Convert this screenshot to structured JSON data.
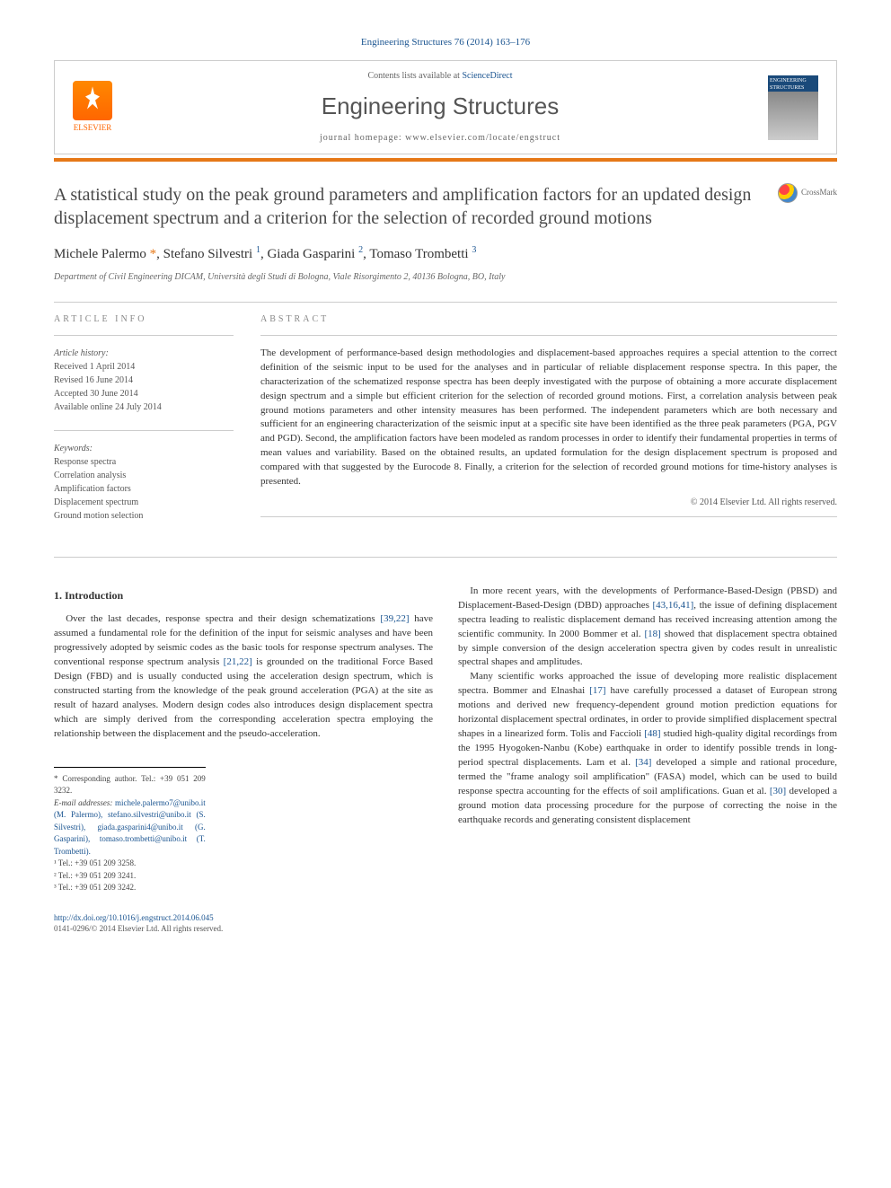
{
  "citation": "Engineering Structures 76 (2014) 163–176",
  "header": {
    "publisher_name": "ELSEVIER",
    "contents_prefix": "Contents lists available at ",
    "contents_link": "ScienceDirect",
    "journal_title": "Engineering Structures",
    "homepage_label": "journal homepage: www.elsevier.com/locate/engstruct",
    "cover_label": "ENGINEERING STRUCTURES"
  },
  "article": {
    "title": "A statistical study on the peak ground parameters and amplification factors for an updated design displacement spectrum and a criterion for the selection of recorded ground motions",
    "crossmark_label": "CrossMark",
    "authors_html": "Michele Palermo <span class='asterisk'>*</span>, Stefano Silvestri <sup>1</sup>, Giada Gasparini <sup>2</sup>, Tomaso Trombetti <sup>3</sup>",
    "affiliation": "Department of Civil Engineering DICAM, Università degli Studi di Bologna, Viale Risorgimento 2, 40136 Bologna, BO, Italy"
  },
  "info": {
    "section_label": "ARTICLE INFO",
    "history_label": "Article history:",
    "history": [
      "Received 1 April 2014",
      "Revised 16 June 2014",
      "Accepted 30 June 2014",
      "Available online 24 July 2014"
    ],
    "keywords_label": "Keywords:",
    "keywords": [
      "Response spectra",
      "Correlation analysis",
      "Amplification factors",
      "Displacement spectrum",
      "Ground motion selection"
    ]
  },
  "abstract": {
    "section_label": "ABSTRACT",
    "text": "The development of performance-based design methodologies and displacement-based approaches requires a special attention to the correct definition of the seismic input to be used for the analyses and in particular of reliable displacement response spectra. In this paper, the characterization of the schematized response spectra has been deeply investigated with the purpose of obtaining a more accurate displacement design spectrum and a simple but efficient criterion for the selection of recorded ground motions. First, a correlation analysis between peak ground motions parameters and other intensity measures has been performed. The independent parameters which are both necessary and sufficient for an engineering characterization of the seismic input at a specific site have been identified as the three peak parameters (PGA, PGV and PGD). Second, the amplification factors have been modeled as random processes in order to identify their fundamental properties in terms of mean values and variability. Based on the obtained results, an updated formulation for the design displacement spectrum is proposed and compared with that suggested by the Eurocode 8. Finally, a criterion for the selection of recorded ground motions for time-history analyses is presented.",
    "copyright": "© 2014 Elsevier Ltd. All rights reserved."
  },
  "body": {
    "heading": "1. Introduction",
    "p1": "Over the last decades, response spectra and their design schematizations [39,22] have assumed a fundamental role for the definition of the input for seismic analyses and have been progressively adopted by seismic codes as the basic tools for response spectrum analyses. The conventional response spectrum analysis [21,22] is grounded on the traditional Force Based Design (FBD) and is usually conducted using the acceleration design spectrum, which is constructed starting from the knowledge of the peak ground acceleration (PGA) at the site as result of hazard analyses. Modern design codes also introduces design displacement spectra which are simply derived from the corresponding acceleration spectra employing the relationship between the displacement and the pseudo-acceleration.",
    "p2": "In more recent years, with the developments of Performance-Based-Design (PBSD) and Displacement-Based-Design (DBD) approaches [43,16,41], the issue of defining displacement spectra leading to realistic displacement demand has received increasing attention among the scientific community. In 2000 Bommer et al. [18] showed that displacement spectra obtained by simple conversion of the design acceleration spectra given by codes result in unrealistic spectral shapes and amplitudes.",
    "p3": "Many scientific works approached the issue of developing more realistic displacement spectra. Bommer and Elnashai [17] have carefully processed a dataset of European strong motions and derived new frequency-dependent ground motion prediction equations for horizontal displacement spectral ordinates, in order to provide simplified displacement spectral shapes in a linearized form. Tolis and Faccioli [48] studied high-quality digital recordings from the 1995 Hyogoken-Nanbu (Kobe) earthquake in order to identify possible trends in long-period spectral displacements. Lam et al. [34] developed a simple and rational procedure, termed the \"frame analogy soil amplification\" (FASA) model, which can be used to build response spectra accounting for the effects of soil amplifications. Guan et al. [30] developed a ground motion data processing procedure for the purpose of correcting the noise in the earthquake records and generating consistent displacement",
    "refs": {
      "r1": "[39,22]",
      "r2": "[21,22]",
      "r3": "[43,16,41]",
      "r4": "[18]",
      "r5": "[17]",
      "r6": "[48]",
      "r7": "[34]",
      "r8": "[30]"
    }
  },
  "footnotes": {
    "corresponding": "* Corresponding author. Tel.: +39 051 209 3232.",
    "emails_label": "E-mail addresses: ",
    "emails": "michele.palermo7@unibo.it (M. Palermo), stefano.silvestri@unibo.it (S. Silvestri), giada.gasparini4@unibo.it (G. Gasparini), tomaso.trombetti@unibo.it (T. Trombetti).",
    "f1": "¹ Tel.: +39 051 209 3258.",
    "f2": "² Tel.: +39 051 209 3241.",
    "f3": "³ Tel.: +39 051 209 3242."
  },
  "footer": {
    "doi": "http://dx.doi.org/10.1016/j.engstruct.2014.06.045",
    "issn_line": "0141-0296/© 2014 Elsevier Ltd. All rights reserved."
  },
  "colors": {
    "link": "#1a5490",
    "accent": "#e67817",
    "text": "#333333",
    "muted": "#666666"
  }
}
